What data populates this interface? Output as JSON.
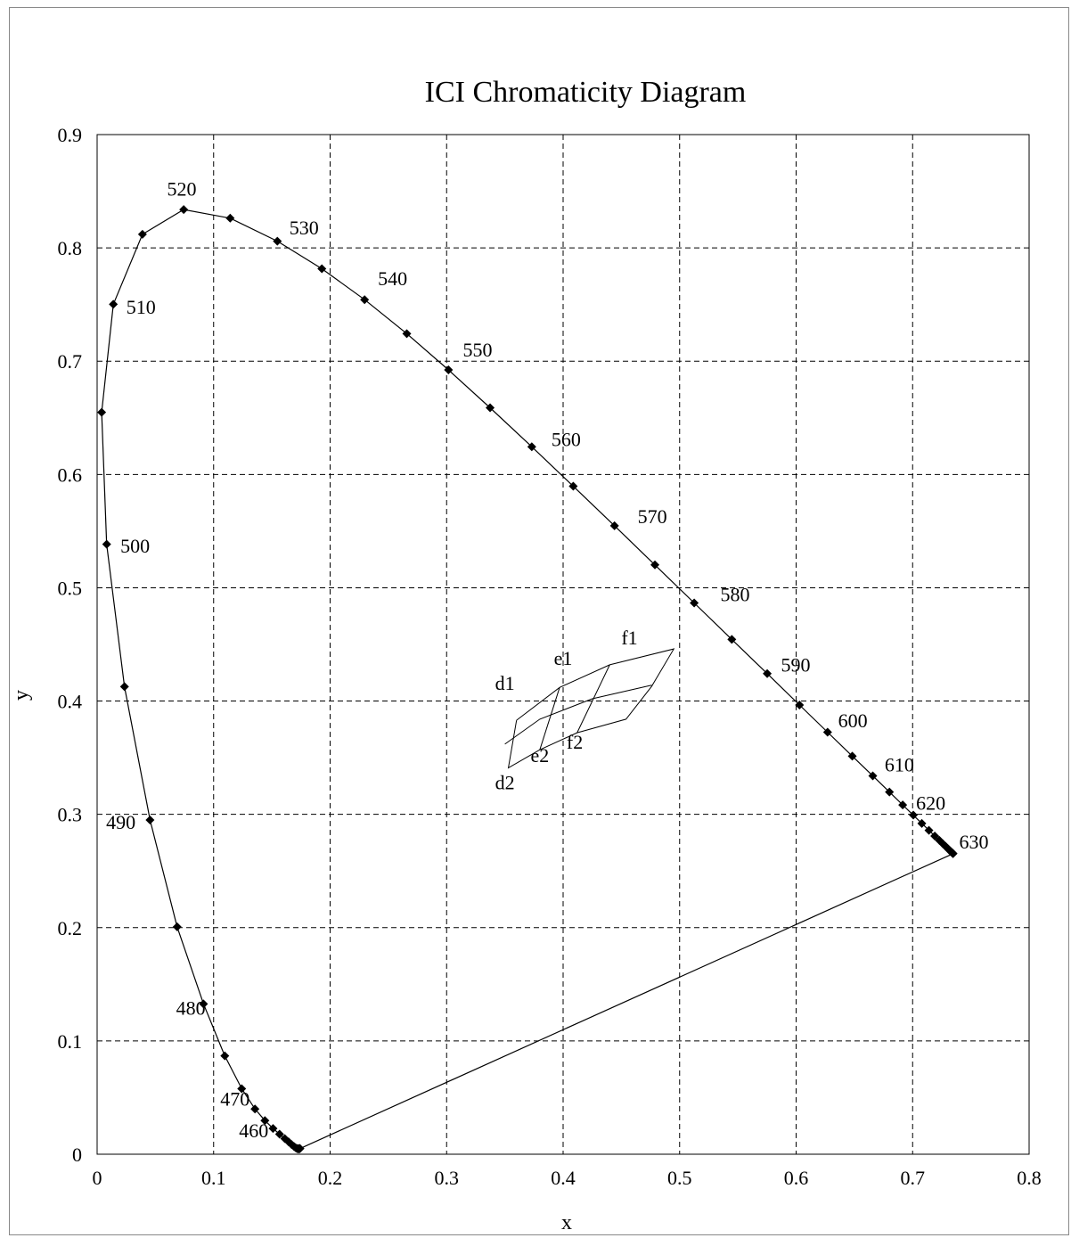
{
  "chart_data": {
    "type": "scatter",
    "title": "ICI Chromaticity Diagram",
    "xlabel": "x",
    "ylabel": "y",
    "xlim": [
      0,
      0.8
    ],
    "ylim": [
      0,
      0.9
    ],
    "x_ticks": [
      0,
      0.1,
      0.2,
      0.3,
      0.4,
      0.5,
      0.6,
      0.7,
      0.8
    ],
    "y_ticks": [
      0,
      0.1,
      0.2,
      0.3,
      0.4,
      0.5,
      0.6,
      0.7,
      0.8,
      0.9
    ],
    "grid": true,
    "spectral_locus": {
      "x": [
        0.1741,
        0.174,
        0.1738,
        0.1736,
        0.1733,
        0.173,
        0.1726,
        0.1721,
        0.1714,
        0.1703,
        0.1689,
        0.1669,
        0.1644,
        0.1611,
        0.1566,
        0.151,
        0.144,
        0.1355,
        0.1241,
        0.1096,
        0.0913,
        0.0687,
        0.0454,
        0.0235,
        0.0082,
        0.0039,
        0.0139,
        0.0389,
        0.0743,
        0.1142,
        0.1547,
        0.1929,
        0.2296,
        0.2658,
        0.3016,
        0.3373,
        0.3731,
        0.4087,
        0.4441,
        0.4788,
        0.5125,
        0.5448,
        0.5752,
        0.6029,
        0.627,
        0.6482,
        0.6658,
        0.6801,
        0.6915,
        0.7006,
        0.7079,
        0.714,
        0.719,
        0.723,
        0.726,
        0.7283,
        0.73,
        0.7311,
        0.732,
        0.7327,
        0.7334,
        0.734,
        0.7344,
        0.7346,
        0.7347
      ],
      "y": [
        0.005,
        0.005,
        0.0049,
        0.0049,
        0.0048,
        0.0048,
        0.0048,
        0.0048,
        0.0051,
        0.0058,
        0.0069,
        0.0086,
        0.0109,
        0.0138,
        0.0177,
        0.0227,
        0.0297,
        0.0399,
        0.0578,
        0.0868,
        0.1327,
        0.2007,
        0.295,
        0.4127,
        0.5384,
        0.6548,
        0.7502,
        0.812,
        0.8338,
        0.8262,
        0.8059,
        0.7816,
        0.7543,
        0.7243,
        0.6923,
        0.6589,
        0.6245,
        0.5896,
        0.5547,
        0.5202,
        0.4866,
        0.4544,
        0.4242,
        0.3965,
        0.3725,
        0.3514,
        0.334,
        0.3197,
        0.3083,
        0.2993,
        0.292,
        0.2859,
        0.2809,
        0.277,
        0.274,
        0.2717,
        0.27,
        0.2689,
        0.268,
        0.2673,
        0.2666,
        0.266,
        0.2656,
        0.2654,
        0.2653
      ]
    },
    "purple_line": {
      "x": [
        0.1741,
        0.7347
      ],
      "y": [
        0.005,
        0.2653
      ]
    },
    "wavelength_labels": [
      {
        "text": "460",
        "x": 0.147,
        "y": 0.015,
        "anchor": "end"
      },
      {
        "text": "470",
        "x": 0.131,
        "y": 0.043,
        "anchor": "end"
      },
      {
        "text": "480",
        "x": 0.093,
        "y": 0.123,
        "anchor": "end"
      },
      {
        "text": "490",
        "x": 0.033,
        "y": 0.287,
        "anchor": "end"
      },
      {
        "text": "500",
        "x": 0.02,
        "y": 0.531,
        "anchor": "start"
      },
      {
        "text": "510",
        "x": 0.025,
        "y": 0.742,
        "anchor": "start"
      },
      {
        "text": "520",
        "x": 0.06,
        "y": 0.846,
        "anchor": "start"
      },
      {
        "text": "530",
        "x": 0.165,
        "y": 0.812,
        "anchor": "start"
      },
      {
        "text": "540",
        "x": 0.241,
        "y": 0.767,
        "anchor": "start"
      },
      {
        "text": "550",
        "x": 0.314,
        "y": 0.704,
        "anchor": "start"
      },
      {
        "text": "560",
        "x": 0.39,
        "y": 0.625,
        "anchor": "start"
      },
      {
        "text": "570",
        "x": 0.464,
        "y": 0.557,
        "anchor": "start"
      },
      {
        "text": "580",
        "x": 0.535,
        "y": 0.488,
        "anchor": "start"
      },
      {
        "text": "590",
        "x": 0.587,
        "y": 0.426,
        "anchor": "start"
      },
      {
        "text": "600",
        "x": 0.636,
        "y": 0.377,
        "anchor": "start"
      },
      {
        "text": "610",
        "x": 0.676,
        "y": 0.338,
        "anchor": "start"
      },
      {
        "text": "620",
        "x": 0.703,
        "y": 0.304,
        "anchor": "start"
      },
      {
        "text": "630",
        "x": 0.74,
        "y": 0.27,
        "anchor": "start"
      }
    ],
    "grid_patch": {
      "cells": [
        {
          "x": [
            0.36,
            0.397,
            0.44,
            0.495,
            0.476,
            0.454,
            0.412,
            0.38,
            0.353,
            0.36
          ],
          "y": [
            0.383,
            0.412,
            0.432,
            0.446,
            0.413,
            0.384,
            0.372,
            0.357,
            0.341,
            0.383
          ]
        }
      ],
      "lines": [
        {
          "x": [
            0.35,
            0.38,
            0.425,
            0.476
          ],
          "y": [
            0.362,
            0.384,
            0.402,
            0.414
          ]
        },
        {
          "x": [
            0.397,
            0.38
          ],
          "y": [
            0.412,
            0.357
          ]
        },
        {
          "x": [
            0.44,
            0.412
          ],
          "y": [
            0.432,
            0.372
          ]
        }
      ],
      "labels": [
        {
          "text": "d1",
          "x": 0.35,
          "y": 0.41
        },
        {
          "text": "e1",
          "x": 0.4,
          "y": 0.432
        },
        {
          "text": "f1",
          "x": 0.457,
          "y": 0.45
        },
        {
          "text": "d2",
          "x": 0.35,
          "y": 0.322
        },
        {
          "text": "e2",
          "x": 0.38,
          "y": 0.346
        },
        {
          "text": "f2",
          "x": 0.41,
          "y": 0.358
        }
      ]
    }
  }
}
